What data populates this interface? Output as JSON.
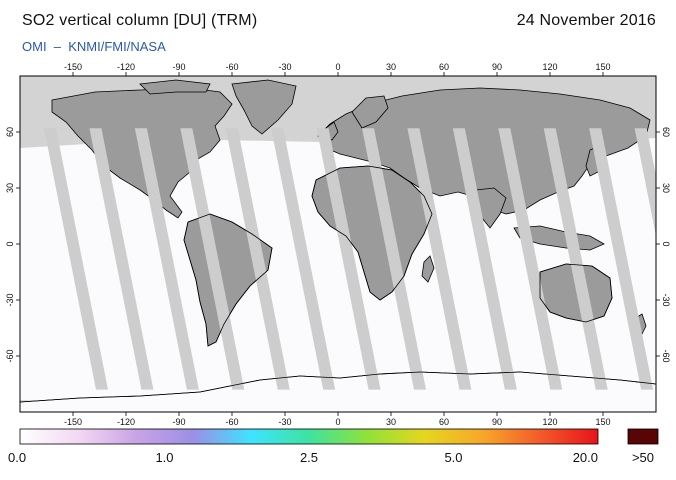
{
  "header": {
    "title": "SO2 vertical column [DU] (TRM)",
    "date": "24 November 2016",
    "credit": "OMI  –  KNMI/FMI/NASA"
  },
  "map": {
    "projection": "equirectangular",
    "lon_range": [
      -180,
      180
    ],
    "lat_range": [
      -90,
      90
    ],
    "lon_ticks": [
      -150,
      -120,
      -90,
      -60,
      -30,
      0,
      30,
      60,
      90,
      120,
      150
    ],
    "lat_ticks": [
      -60,
      -30,
      0,
      30,
      60
    ],
    "lon_tick_labels": [
      "-150",
      "-120",
      "-90",
      "-60",
      "-30",
      "0",
      "30",
      "60",
      "90",
      "120",
      "150"
    ],
    "lat_tick_labels": [
      "-60",
      "-30",
      "0",
      "30",
      "60"
    ],
    "colors": {
      "no_data": "#d3d3d3",
      "land_no_data": "#9b9b9b",
      "clean_background": "#fbfbfd",
      "coastline": "#000000",
      "orbit_gap": "#cdcdcd"
    },
    "orbit_gap_count": 14
  },
  "colorbar": {
    "labels": [
      "0.0",
      "1.0",
      "2.5",
      "5.0",
      "20.0"
    ],
    "overflow_label": ">50",
    "overflow_color": "#5a0505",
    "stops": [
      "#ffffff",
      "#f3d9f3",
      "#c9a4e6",
      "#9b8fe6",
      "#3fe3ff",
      "#3de3a0",
      "#8fe23a",
      "#e6d61e",
      "#f7a72a",
      "#f35b2a",
      "#e8121a"
    ]
  }
}
